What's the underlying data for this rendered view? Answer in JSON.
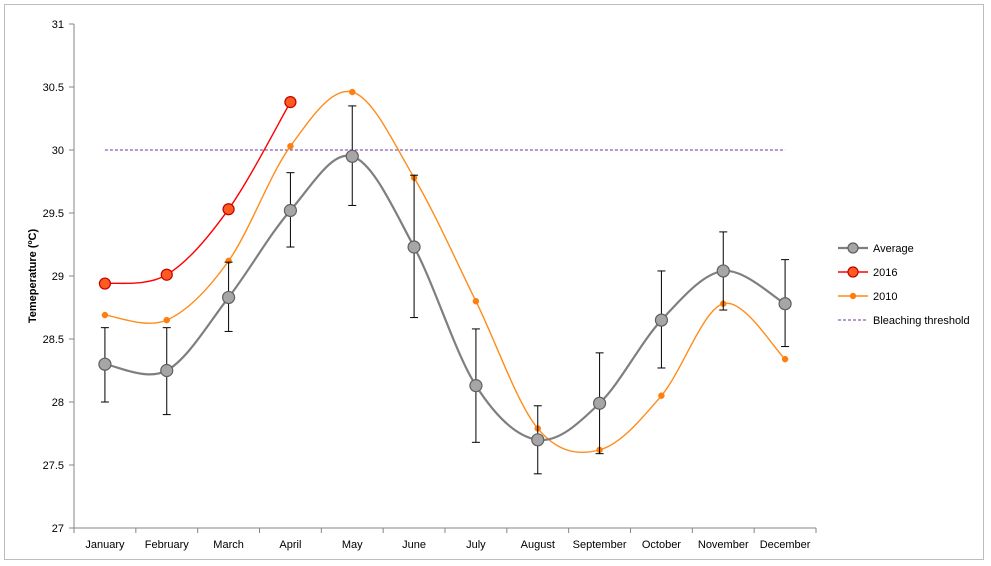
{
  "chart_data": {
    "type": "line",
    "title": "",
    "xlabel": "",
    "ylabel": "Temeperature (ºC)",
    "categories": [
      "January",
      "February",
      "March",
      "April",
      "May",
      "June",
      "July",
      "August",
      "September",
      "October",
      "November",
      "December"
    ],
    "ylim": [
      27,
      31
    ],
    "yticks": [
      27,
      27.5,
      28,
      28.5,
      29,
      29.5,
      30,
      30.5,
      31
    ],
    "ytick_labels": [
      "27",
      "27.5",
      "28",
      "28.5",
      "29",
      "29.5",
      "30",
      "30.5",
      "31"
    ],
    "grid": false,
    "legend_position": "right",
    "series": [
      {
        "name": "Average",
        "color": "#7f7f7f",
        "marker_fill": "#a6a6a6",
        "marker": "circle-large",
        "smooth": true,
        "values": [
          28.3,
          28.25,
          28.83,
          29.52,
          29.95,
          29.23,
          28.13,
          27.7,
          27.99,
          28.65,
          29.04,
          28.78
        ],
        "error_low": [
          28.0,
          27.9,
          28.56,
          29.23,
          29.56,
          28.67,
          27.68,
          27.43,
          27.59,
          28.27,
          28.73,
          28.44
        ],
        "error_high": [
          28.59,
          28.59,
          29.11,
          29.82,
          30.35,
          29.8,
          28.58,
          27.97,
          28.39,
          29.04,
          29.35,
          29.13
        ]
      },
      {
        "name": "2016",
        "color": "#ff0000",
        "marker_fill": "#ff5a1f",
        "marker": "circle-large",
        "smooth": true,
        "values": [
          28.94,
          29.01,
          29.53,
          30.38,
          null,
          null,
          null,
          null,
          null,
          null,
          null,
          null
        ]
      },
      {
        "name": "2010",
        "color": "#ff8c1a",
        "marker_fill": "#ff7f0e",
        "marker": "circle-small",
        "smooth": true,
        "values": [
          28.69,
          28.65,
          29.12,
          30.03,
          30.46,
          29.78,
          28.8,
          27.79,
          27.62,
          28.05,
          28.78,
          28.34
        ]
      },
      {
        "name": "Bleaching threshold",
        "color": "#7030a0",
        "marker": "none",
        "dashed": true,
        "values": [
          30,
          30,
          30,
          30,
          30,
          30,
          30,
          30,
          30,
          30,
          30,
          30
        ]
      }
    ]
  }
}
